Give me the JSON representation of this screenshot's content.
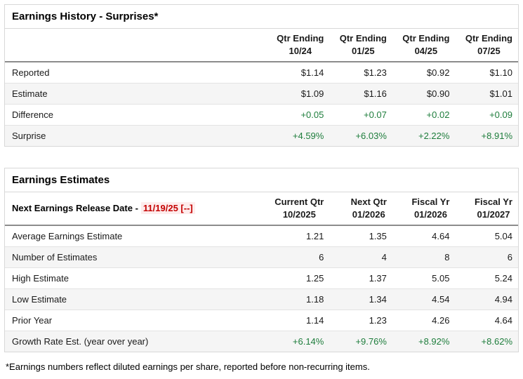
{
  "colors": {
    "positive_green": "#1e7d3c",
    "release_red": "#c40000",
    "alt_row_bg": "#f5f5f5",
    "border_gray": "#d8d8d8"
  },
  "history": {
    "title": "Earnings History - Surprises*",
    "col_headers": [
      {
        "line1": "Qtr Ending",
        "line2": "10/24"
      },
      {
        "line1": "Qtr Ending",
        "line2": "01/25"
      },
      {
        "line1": "Qtr Ending",
        "line2": "04/25"
      },
      {
        "line1": "Qtr Ending",
        "line2": "07/25"
      }
    ],
    "rows": [
      {
        "label": "Reported",
        "values": [
          "$1.14",
          "$1.23",
          "$0.92",
          "$1.10"
        ]
      },
      {
        "label": "Estimate",
        "values": [
          "$1.09",
          "$1.16",
          "$0.90",
          "$1.01"
        ]
      },
      {
        "label": "Difference",
        "values": [
          "+0.05",
          "+0.07",
          "+0.02",
          "+0.09"
        ]
      },
      {
        "label": "Surprise",
        "values": [
          "+4.59%",
          "+6.03%",
          "+2.22%",
          "+8.91%"
        ]
      }
    ]
  },
  "estimates": {
    "title": "Earnings Estimates",
    "release_label": "Next Earnings Release Date -",
    "release_date": "11/19/25 [--]",
    "col_headers": [
      {
        "line1": "Current Qtr",
        "line2": "10/2025"
      },
      {
        "line1": "Next Qtr",
        "line2": "01/2026"
      },
      {
        "line1": "Fiscal Yr",
        "line2": "01/2026"
      },
      {
        "line1": "Fiscal Yr",
        "line2": "01/2027"
      }
    ],
    "rows": [
      {
        "label": "Average Earnings Estimate",
        "values": [
          "1.21",
          "1.35",
          "4.64",
          "5.04"
        ]
      },
      {
        "label": "Number of Estimates",
        "values": [
          "6",
          "4",
          "8",
          "6"
        ]
      },
      {
        "label": "High Estimate",
        "values": [
          "1.25",
          "1.37",
          "5.05",
          "5.24"
        ]
      },
      {
        "label": "Low Estimate",
        "values": [
          "1.18",
          "1.34",
          "4.54",
          "4.94"
        ]
      },
      {
        "label": "Prior Year",
        "values": [
          "1.14",
          "1.23",
          "4.26",
          "4.64"
        ]
      },
      {
        "label": "Growth Rate Est. (year over year)",
        "values": [
          "+6.14%",
          "+9.76%",
          "+8.92%",
          "+8.62%"
        ]
      }
    ]
  },
  "footnote": "*Earnings numbers reflect diluted earnings per share, reported before non-recurring items."
}
